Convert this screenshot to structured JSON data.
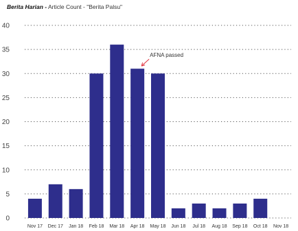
{
  "title": {
    "bold": "Berita Harian -",
    "rest": " Article Count - \"Berita Palsu\""
  },
  "chart_data": {
    "type": "bar",
    "categories": [
      "Nov 17",
      "Dec 17",
      "Jan 18",
      "Feb 18",
      "Mar 18",
      "Apr 18",
      "May 18",
      "Jun 18",
      "Jul 18",
      "Aug 18",
      "Sep 18",
      "Oct 18",
      "Nov 18"
    ],
    "values": [
      4,
      7,
      6,
      30,
      36,
      31,
      30,
      2,
      3,
      2,
      3,
      4,
      0
    ],
    "ylim": [
      0,
      40
    ],
    "yticks": [
      0,
      5,
      10,
      15,
      20,
      25,
      30,
      35,
      40
    ],
    "xlabel": "",
    "ylabel": "",
    "grid": "dotted horizontal",
    "annotation": {
      "text": "AFNA passed",
      "category": "Apr 18"
    },
    "colors": {
      "bar": "#2e2e8c",
      "grid": "#555555",
      "arrow": "#e0303c"
    }
  }
}
